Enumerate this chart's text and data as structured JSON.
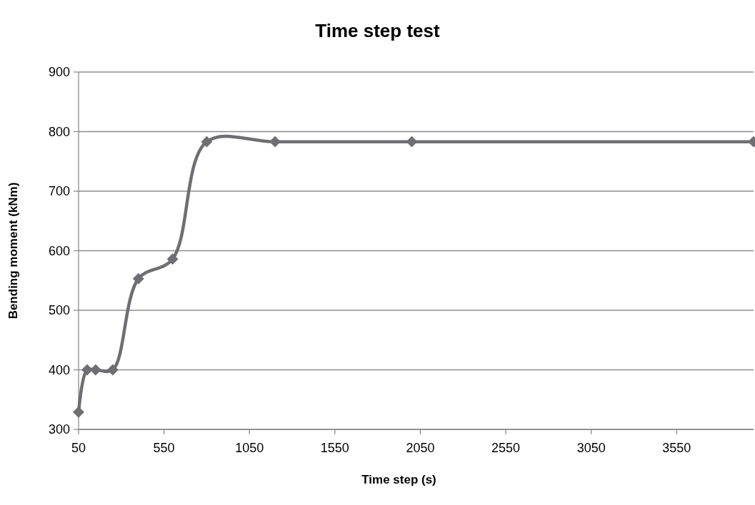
{
  "chart_data": {
    "type": "line",
    "title": "Time step test",
    "xlabel": "Time step (s)",
    "ylabel": "Bending moment (kNm)",
    "x": [
      50,
      100,
      150,
      250,
      400,
      600,
      800,
      1200,
      2000,
      4000
    ],
    "series": [
      {
        "color": "#6e6e73",
        "values": [
          329,
          400,
          400,
          400,
          553,
          586,
          783,
          783,
          783,
          783
        ]
      }
    ],
    "xlim": [
      50,
      4000
    ],
    "xticks": [
      50,
      550,
      1050,
      1550,
      2050,
      2550,
      3050,
      3550
    ],
    "ylim": [
      300,
      900
    ],
    "yticks": [
      300,
      400,
      500,
      600,
      700,
      800,
      900
    ],
    "grid": "y",
    "marker": "diamond",
    "line_style": "solid"
  }
}
